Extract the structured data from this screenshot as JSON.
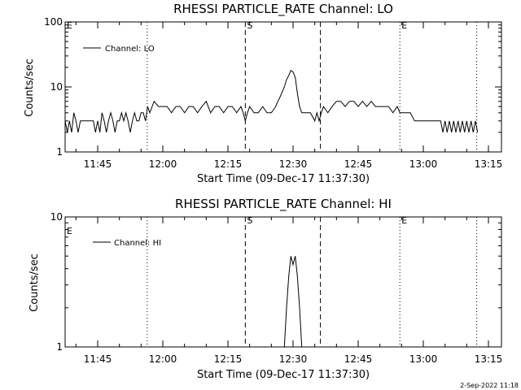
{
  "footer": {
    "timestamp": "2-Sep-2022 11:18"
  },
  "chart_data": [
    {
      "type": "line",
      "title": "RHESSI PARTICLE_RATE Channel: LO",
      "xlabel": "Start Time (09-Dec-17 11:37:30)",
      "ylabel": "Counts/sec",
      "yscale": "log",
      "ylim": [
        1,
        100
      ],
      "yticks": [
        {
          "v": 1,
          "label": "1"
        },
        {
          "v": 10,
          "label": "10"
        },
        {
          "v": 100,
          "label": "100"
        }
      ],
      "xlim": [
        697.5,
        798
      ],
      "xticks": [
        {
          "v": 705,
          "label": "11:45"
        },
        {
          "v": 720,
          "label": "12:00"
        },
        {
          "v": 735,
          "label": "12:15"
        },
        {
          "v": 750,
          "label": "12:30"
        },
        {
          "v": 765,
          "label": "12:45"
        },
        {
          "v": 780,
          "label": "13:00"
        },
        {
          "v": 795,
          "label": "13:15"
        }
      ],
      "vlines": [
        {
          "x": 716.4,
          "style": "dotted",
          "label": ""
        },
        {
          "x": 739.0,
          "style": "dashed",
          "label": "S"
        },
        {
          "x": 756.3,
          "style": "dashed",
          "label": ""
        },
        {
          "x": 774.6,
          "style": "dotted",
          "label": "E"
        },
        {
          "x": 792.3,
          "style": "dotted",
          "label": ""
        }
      ],
      "corner_label": "E",
      "legend": {
        "position": "top-left"
      },
      "series": [
        {
          "name": "Channel: LO",
          "x": [
            697.5,
            698.0,
            698.5,
            699.0,
            699.5,
            700.0,
            700.5,
            701.0,
            702.0,
            703.0,
            704.0,
            704.5,
            705.0,
            705.5,
            706.0,
            706.5,
            707.0,
            707.5,
            708.0,
            708.5,
            709.0,
            709.5,
            710.0,
            710.5,
            711.0,
            711.5,
            712.0,
            712.5,
            713.0,
            713.5,
            714.0,
            714.5,
            715.0,
            715.5,
            716.0,
            716.5,
            717.0,
            718.0,
            719.0,
            720.0,
            721.0,
            722.0,
            723.0,
            724.0,
            725.0,
            726.0,
            727.0,
            728.0,
            729.0,
            730.0,
            731.0,
            732.0,
            733.0,
            734.0,
            735.0,
            736.0,
            737.0,
            738.0,
            738.5,
            739.0,
            739.5,
            740.0,
            741.0,
            742.0,
            743.0,
            744.0,
            745.0,
            746.0,
            746.5,
            747.0,
            748.0,
            748.5,
            749.0,
            749.5,
            750.0,
            750.5,
            751.0,
            751.5,
            752.0,
            753.0,
            754.0,
            755.0,
            755.5,
            756.0,
            756.5,
            757.0,
            758.0,
            759.0,
            760.0,
            761.0,
            762.0,
            763.0,
            764.0,
            765.0,
            766.0,
            767.0,
            768.0,
            769.0,
            770.0,
            771.0,
            772.0,
            773.0,
            774.0,
            774.6,
            775.0,
            776.0,
            777.0,
            778.0,
            779.0,
            779.5,
            780.0,
            781.0,
            782.0,
            783.0,
            784.0,
            784.5,
            785.0,
            785.5,
            786.0,
            786.5,
            787.0,
            787.5,
            788.0,
            788.5,
            789.0,
            789.5,
            790.0,
            790.5,
            791.0,
            791.5,
            792.0,
            792.5
          ],
          "y": [
            3,
            2,
            3,
            2,
            4,
            3,
            2,
            3,
            3,
            3,
            3,
            2,
            3,
            2,
            4,
            3,
            2,
            3,
            4,
            3,
            2,
            3,
            3,
            4,
            3,
            4,
            3,
            2,
            3,
            4,
            3,
            3,
            4,
            4,
            3,
            5,
            4,
            6,
            5,
            5,
            5,
            4,
            5,
            5,
            4,
            5,
            5,
            4,
            5,
            6,
            4,
            5,
            5,
            4,
            5,
            5,
            4,
            5,
            4,
            3,
            4,
            5,
            4,
            4,
            5,
            4,
            4,
            5,
            6,
            7,
            10,
            13,
            15,
            18,
            17,
            14,
            8,
            5,
            4,
            4,
            4,
            3,
            4,
            3,
            4,
            5,
            4,
            5,
            6,
            6,
            5,
            6,
            6,
            5,
            6,
            5,
            6,
            5,
            5,
            5,
            5,
            4,
            5,
            4,
            4,
            4,
            4,
            3,
            3,
            3,
            3,
            3,
            3,
            3,
            3,
            2,
            3,
            2,
            3,
            2,
            3,
            2,
            3,
            2,
            3,
            2,
            3,
            2,
            3,
            2,
            3,
            2
          ]
        }
      ]
    },
    {
      "type": "line",
      "title": "RHESSI PARTICLE_RATE Channel: HI",
      "xlabel": "Start Time (09-Dec-17 11:37:30)",
      "ylabel": "Counts/sec",
      "yscale": "log",
      "ylim": [
        1,
        10
      ],
      "yticks": [
        {
          "v": 1,
          "label": "1"
        },
        {
          "v": 10,
          "label": "10"
        }
      ],
      "xlim": [
        697.5,
        798
      ],
      "xticks": [
        {
          "v": 705,
          "label": "11:45"
        },
        {
          "v": 720,
          "label": "12:00"
        },
        {
          "v": 735,
          "label": "12:15"
        },
        {
          "v": 750,
          "label": "12:30"
        },
        {
          "v": 765,
          "label": "12:45"
        },
        {
          "v": 780,
          "label": "13:00"
        },
        {
          "v": 795,
          "label": "13:15"
        }
      ],
      "vlines": [
        {
          "x": 716.4,
          "style": "dotted",
          "label": ""
        },
        {
          "x": 739.0,
          "style": "dashed",
          "label": "S"
        },
        {
          "x": 756.3,
          "style": "dashed",
          "label": ""
        },
        {
          "x": 774.6,
          "style": "dotted",
          "label": "E"
        },
        {
          "x": 792.3,
          "style": "dotted",
          "label": ""
        }
      ],
      "corner_label": "E",
      "legend": {
        "position": "top-left"
      },
      "series": [
        {
          "name": "Channel: HI",
          "x": [
            748.0,
            748.5,
            749.0,
            749.5,
            750.0,
            750.5,
            751.0,
            751.5,
            752.0
          ],
          "y": [
            1.0,
            2.0,
            3.5,
            5.0,
            4.3,
            5.0,
            3.5,
            2.0,
            1.0
          ]
        }
      ]
    }
  ]
}
